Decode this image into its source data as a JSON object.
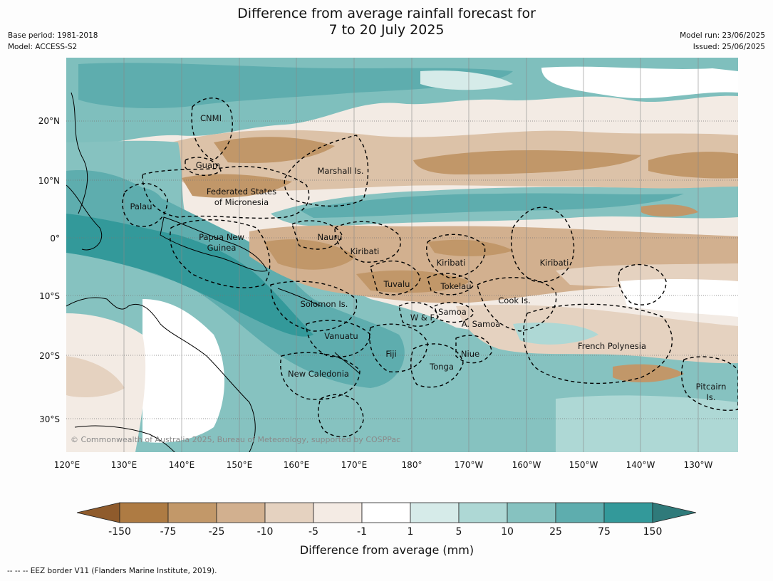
{
  "title": {
    "line1": "Difference from average rainfall forecast for",
    "line2": "7 to 20 July 2025"
  },
  "meta": {
    "base_period": "Base period: 1981-2018",
    "model": "Model: ACCESS-S2",
    "model_run": "Model run: 23/06/2025",
    "issued": "Issued: 25/06/2025"
  },
  "axes": {
    "lat_ticks": [
      "20°N",
      "10°N",
      "0°",
      "10°S",
      "20°S",
      "30°S"
    ],
    "lon_ticks": [
      "120°E",
      "130°E",
      "140°E",
      "150°E",
      "160°E",
      "170°E",
      "180°",
      "170°W",
      "160°W",
      "150°W",
      "140°W",
      "130°W"
    ]
  },
  "places": {
    "cnmi": "CNMI",
    "guam": "Guam",
    "marshall": "Marshall Is.",
    "fsm_1": "Federated States",
    "fsm_2": "of Micronesia",
    "palau": "Palau",
    "png_1": "Papua New",
    "png_2": "Guinea",
    "nauru": "Nauru",
    "kiribati_w": "Kiribati",
    "kiribati_c": "Kiribati",
    "kiribati_e": "Kiribati",
    "tuvalu": "Tuvalu",
    "tokelau": "Tokelau",
    "cook": "Cook Is.",
    "solomon": "Solomon Is.",
    "wf": "W & F",
    "samoa": "Samoa",
    "asamoa": "A. Samoa",
    "vanuatu": "Vanuatu",
    "fiji": "Fiji",
    "niue": "Niue",
    "tonga": "Tonga",
    "frpoly": "French Polynesia",
    "newcal": "New Caledonia",
    "pitcairn_1": "Pitcairn",
    "pitcairn_2": "Is."
  },
  "copyright": "© Commonwealth of Australia 2025, Bureau of Meteorology, supported by COSPPac",
  "colorbar": {
    "labels": [
      "-150",
      "-75",
      "-25",
      "-10",
      "-5",
      "-1",
      "1",
      "5",
      "10",
      "25",
      "75",
      "150"
    ],
    "colors": [
      "#ae7b43",
      "#c29869",
      "#d2b08f",
      "#e5d2c0",
      "#f4ebe4",
      "#ffffff",
      "#d6ebe9",
      "#aed8d5",
      "#86c2c0",
      "#5eadae",
      "#33999a"
    ],
    "extend_low": "#8f5b2c",
    "extend_high": "#2f7a7a",
    "title": "Difference from average (mm)"
  },
  "footer": "--  --  -- EEZ border V11 (Flanders Marine Institute, 2019)."
}
